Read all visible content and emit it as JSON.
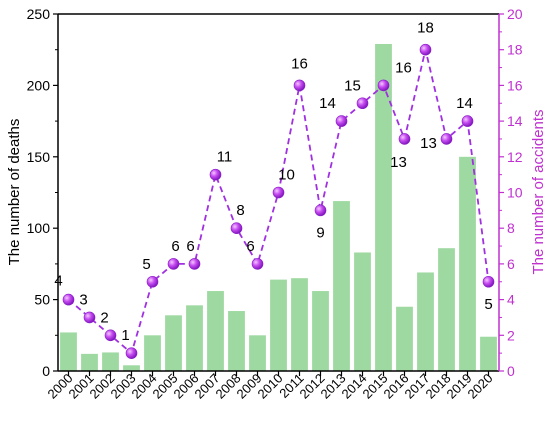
{
  "chart_data": {
    "type": "bar+line",
    "title": "",
    "xlabel": "",
    "ylabel_left": "The number of deaths",
    "ylabel_right": "The number of accidents",
    "ylim_left": [
      0,
      250
    ],
    "ylim_right": [
      0,
      20
    ],
    "yticks_left": [
      "0",
      "50",
      "100",
      "150",
      "200",
      "250"
    ],
    "yticks_right": [
      "0",
      "2",
      "4",
      "6",
      "8",
      "10",
      "12",
      "14",
      "16",
      "18",
      "20"
    ],
    "categories": [
      "2000",
      "2001",
      "2002",
      "2003",
      "2004",
      "2005",
      "2006",
      "2007",
      "2008",
      "2009",
      "2010",
      "2011",
      "2012",
      "2013",
      "2014",
      "2015",
      "2016",
      "2017",
      "2018",
      "2019",
      "2020"
    ],
    "series": [
      {
        "type": "bar",
        "axis": "left",
        "values": [
          27,
          12,
          13,
          4,
          25,
          39,
          46,
          56,
          42,
          25,
          64,
          65,
          56,
          119,
          83,
          229,
          45,
          69,
          86,
          150,
          24
        ]
      },
      {
        "type": "line",
        "axis": "right",
        "values": [
          4,
          3,
          2,
          1,
          5,
          6,
          6,
          11,
          8,
          6,
          10,
          16,
          9,
          14,
          15,
          16,
          13,
          18,
          13,
          14,
          5
        ],
        "labels": [
          "4",
          "3",
          "2",
          "1",
          "5",
          "6",
          "6",
          "11",
          "8",
          "6",
          "10",
          "16",
          "9",
          "14",
          "15",
          "16",
          "13",
          "18",
          "13",
          "14",
          "5"
        ]
      }
    ],
    "colors": {
      "bar": "#9fd9a2",
      "line": "#a030e0",
      "right_axis": "#c030d0"
    },
    "grid": false,
    "legend": "none"
  }
}
